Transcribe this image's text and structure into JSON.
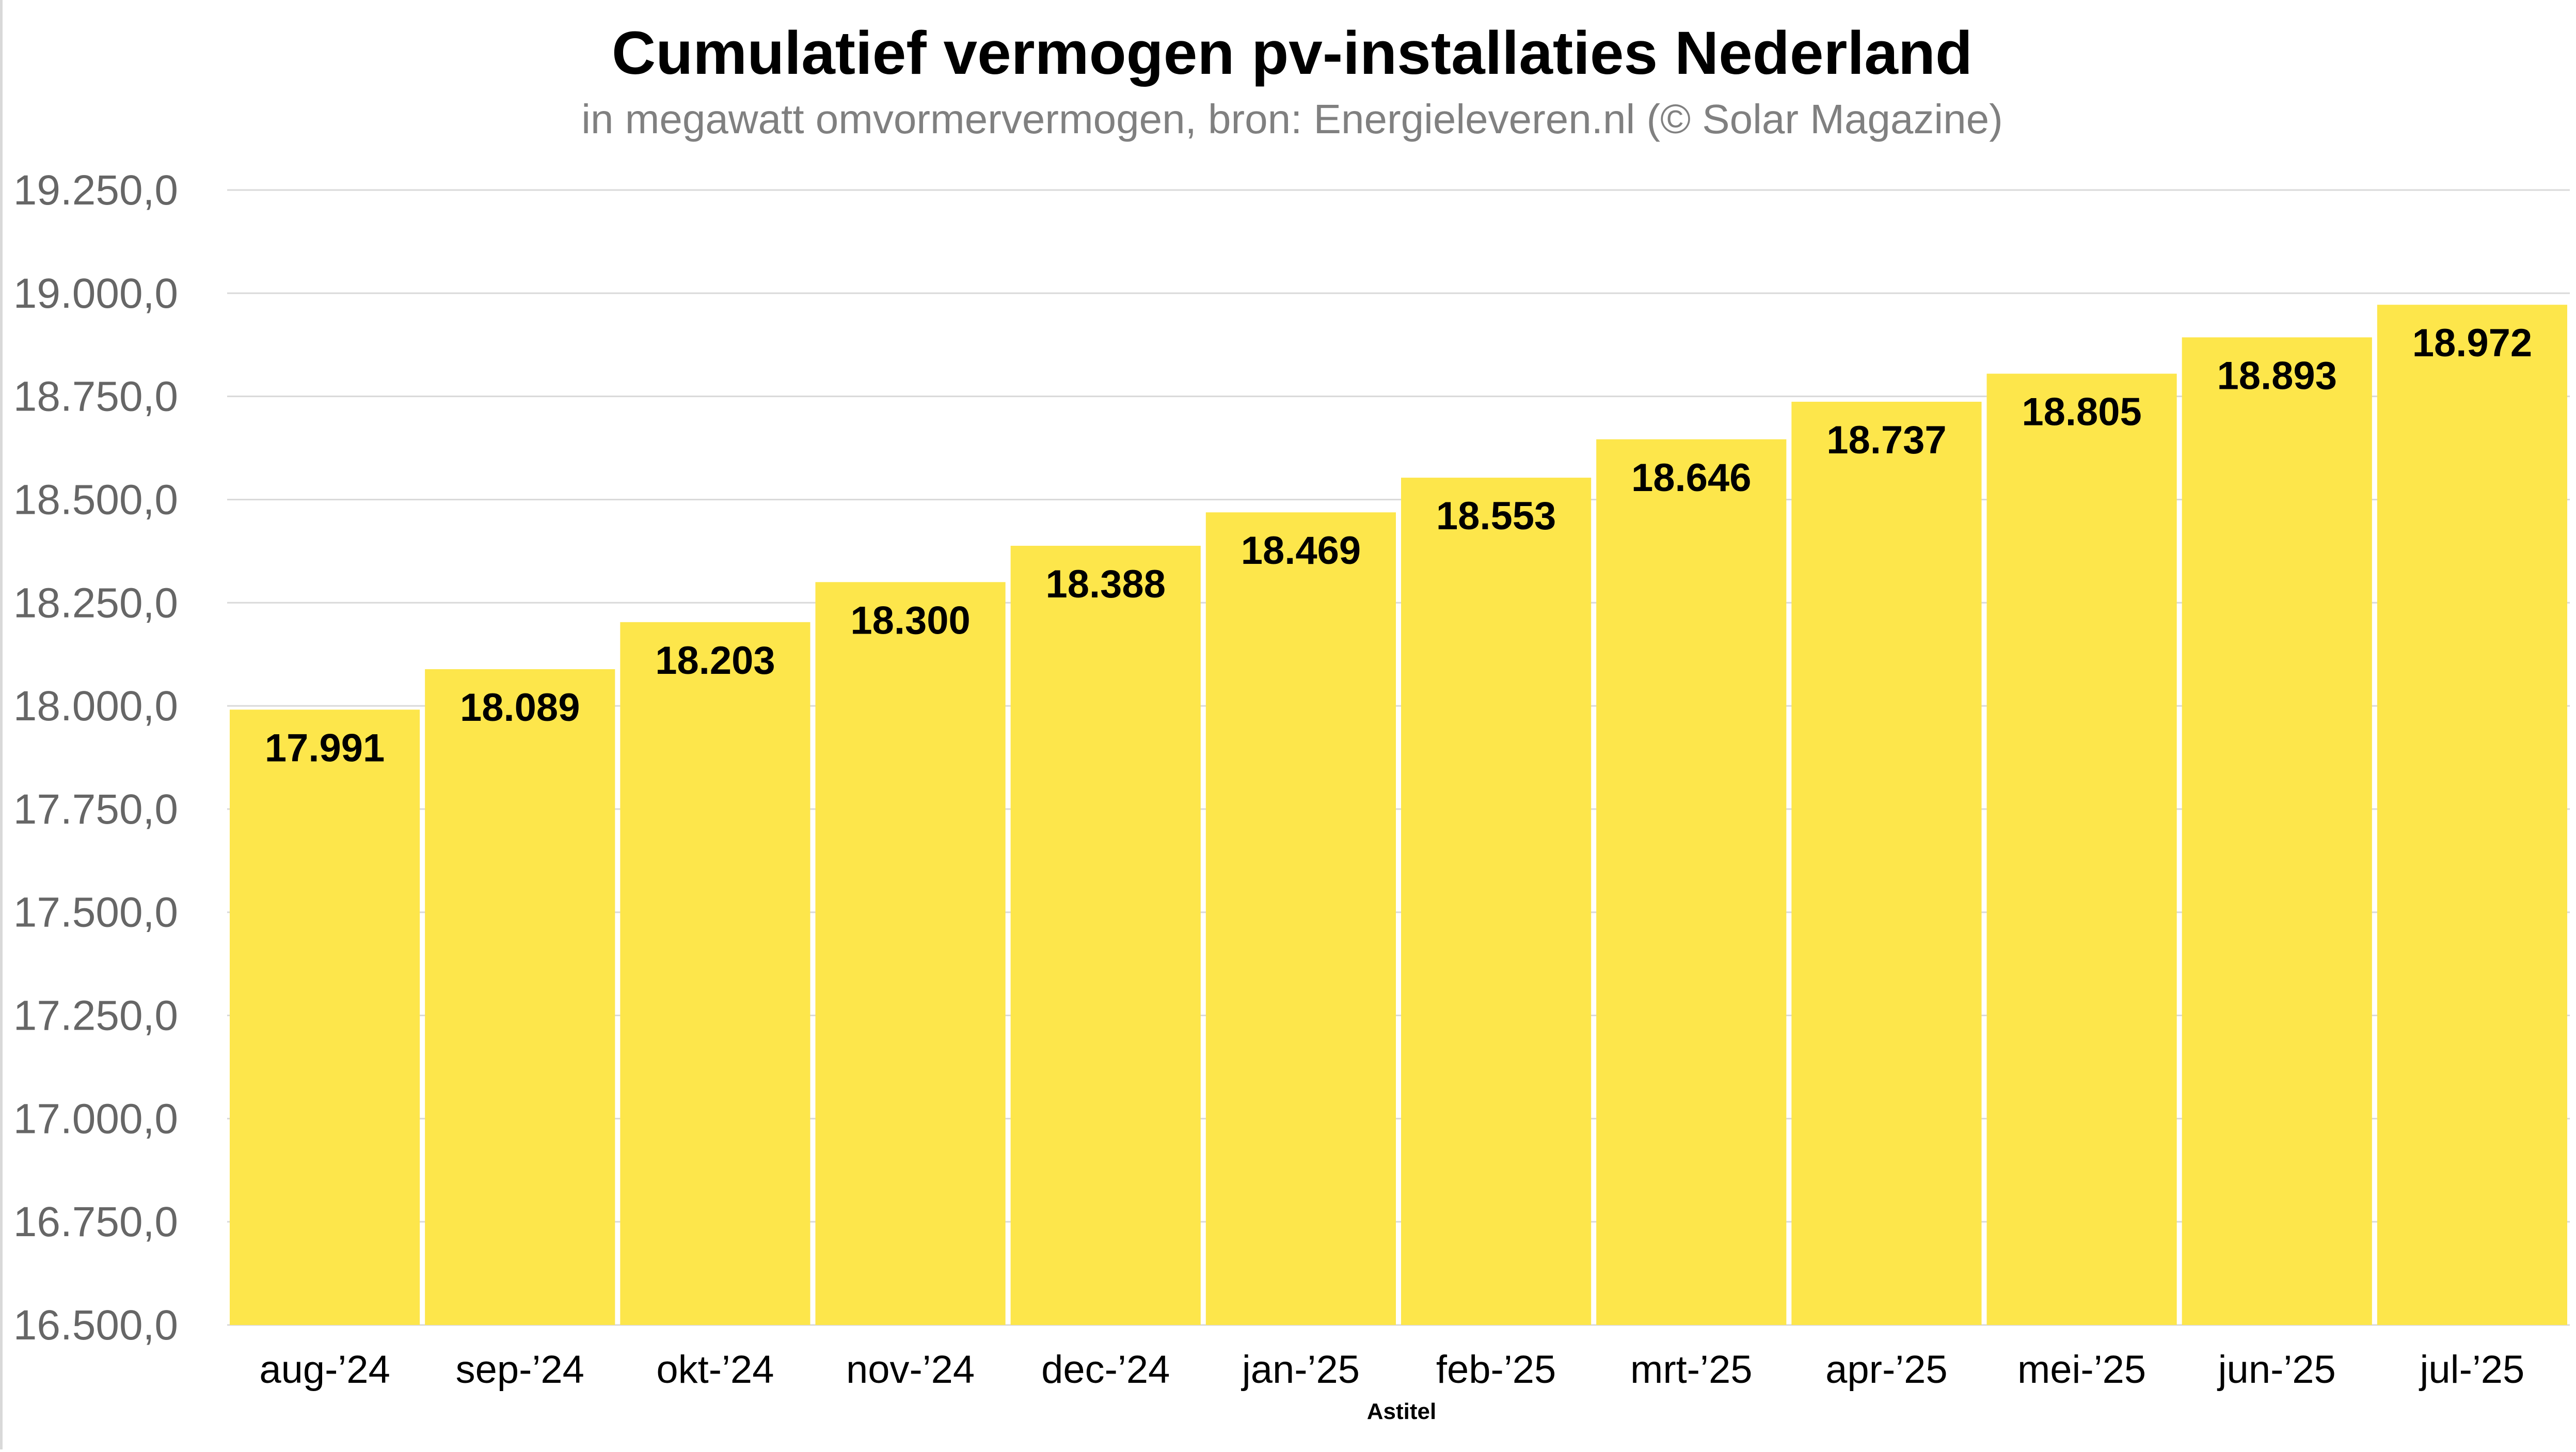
{
  "chart_data": {
    "type": "bar",
    "title": "Cumulatief vermogen pv-installaties Nederland",
    "subtitle": "in megawatt omvormervermogen, bron: Energieleveren.nl (© Solar Magazine)",
    "xlabel": "Astitel",
    "ylabel": "",
    "categories": [
      "aug-’24",
      "sep-’24",
      "okt-’24",
      "nov-’24",
      "dec-’24",
      "jan-’25",
      "feb-’25",
      "mrt-’25",
      "apr-’25",
      "mei-’25",
      "jun-’25",
      "jul-’25"
    ],
    "values": [
      17991,
      18089,
      18203,
      18300,
      18388,
      18469,
      18553,
      18646,
      18737,
      18805,
      18893,
      18972
    ],
    "data_labels": [
      "17.991",
      "18.089",
      "18.203",
      "18.300",
      "18.388",
      "18.469",
      "18.553",
      "18.646",
      "18.737",
      "18.805",
      "18.893",
      "18.972"
    ],
    "ylim": [
      16500,
      19250
    ],
    "yticks": [
      16500,
      16750,
      17000,
      17250,
      17500,
      17750,
      18000,
      18250,
      18500,
      18750,
      19000,
      19250
    ],
    "ytick_labels": [
      "16.500,0",
      "16.750,0",
      "17.000,0",
      "17.250,0",
      "17.500,0",
      "17.750,0",
      "18.000,0",
      "18.250,0",
      "18.500,0",
      "18.750,0",
      "19.000,0",
      "19.250,0"
    ],
    "grid": true,
    "legend": "none",
    "colors": {
      "bar": "#fde64b",
      "grid": "#d9d9d9",
      "title": "#000000",
      "subtitle": "#808080",
      "tick_label": "#666666",
      "category_label": "#000000",
      "data_label": "#000000"
    }
  }
}
